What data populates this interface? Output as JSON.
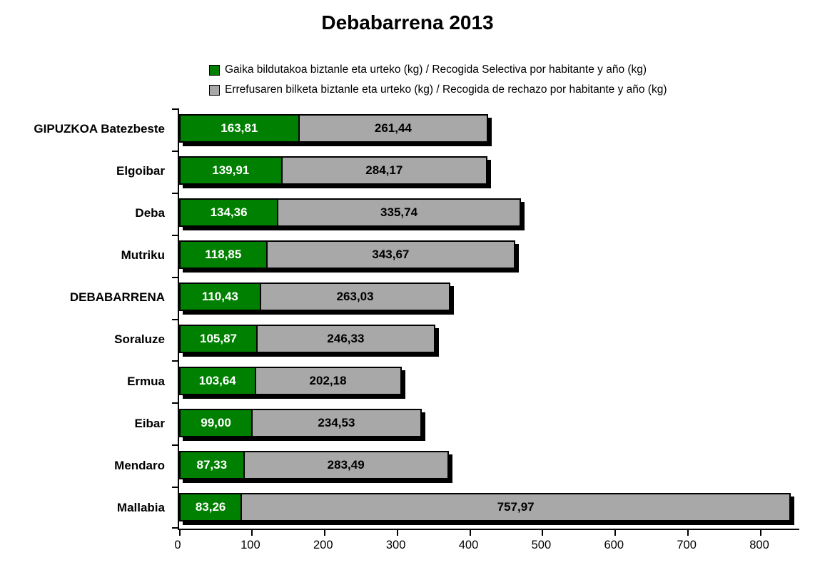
{
  "chart_data": {
    "type": "bar",
    "orientation": "horizontal",
    "stacked": true,
    "title": "Debabarrena 2013",
    "categories": [
      "GIPUZKOA Batezbeste",
      "Elgoibar",
      "Deba",
      "Mutriku",
      "DEBABARRENA",
      "Soraluze",
      "Ermua",
      "Eibar",
      "Mendaro",
      "Mallabia"
    ],
    "series": [
      {
        "name": "Gaika bildutakoa biztanle eta urteko (kg) / Recogida Selectiva por habitante y año (kg)",
        "color": "#008000",
        "text_color": "#ffffff",
        "values": [
          163.81,
          139.91,
          134.36,
          118.85,
          110.43,
          105.87,
          103.64,
          99.0,
          87.33,
          83.26
        ],
        "labels": [
          "163,81",
          "139,91",
          "134,36",
          "118,85",
          "110,43",
          "105,87",
          "103,64",
          "99,00",
          "87,33",
          "83,26"
        ]
      },
      {
        "name": "Errefusaren bilketa biztanle eta urteko (kg) / Recogida de rechazo por habitante y año (kg)",
        "color": "#a8a8a8",
        "text_color": "#000000",
        "values": [
          261.44,
          284.17,
          335.74,
          343.67,
          263.03,
          246.33,
          202.18,
          234.53,
          283.49,
          757.97
        ],
        "labels": [
          "261,44",
          "284,17",
          "335,74",
          "343,67",
          "263,03",
          "246,33",
          "202,18",
          "234,53",
          "283,49",
          "757,97"
        ]
      }
    ],
    "xlim": [
      0,
      853
    ],
    "x_ticks": [
      0,
      100,
      200,
      300,
      400,
      500,
      600,
      700,
      800
    ],
    "grid": false,
    "legend_position": "top"
  }
}
